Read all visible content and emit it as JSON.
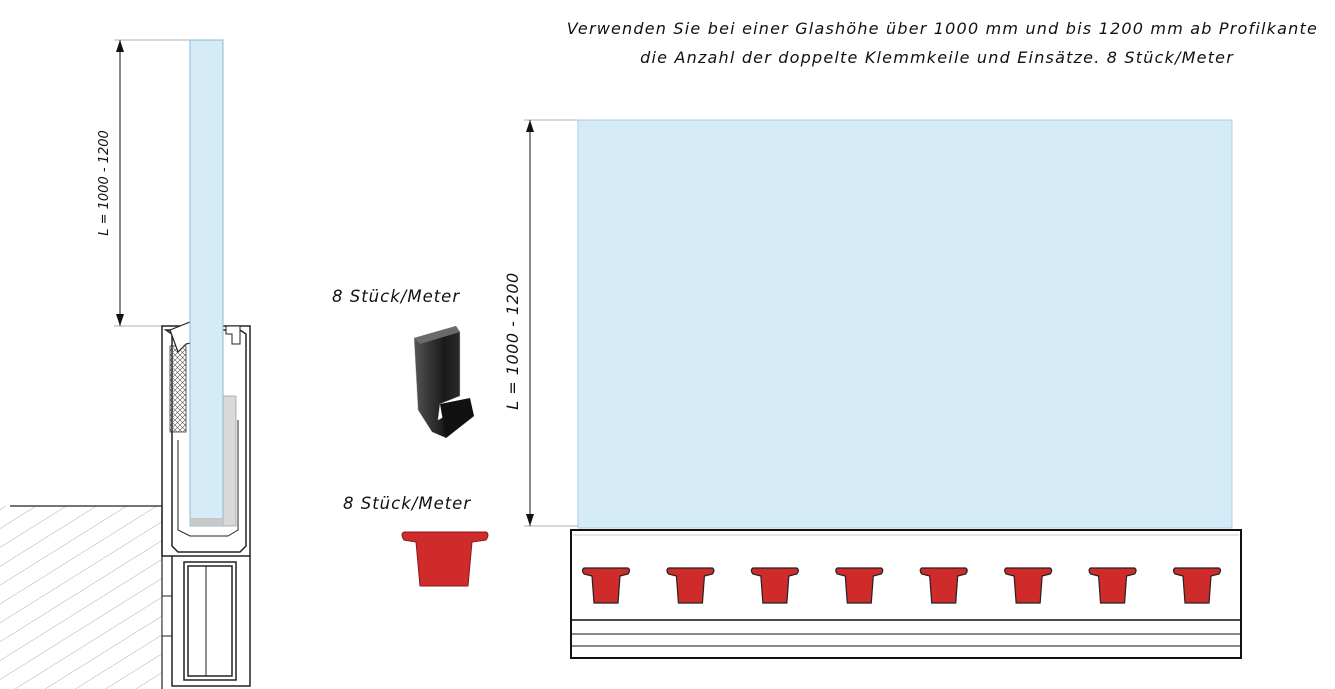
{
  "note": {
    "line1": "Verwenden Sie bei einer Glashöhe über 1000 mm und bis 1200 mm ab Profilkante",
    "line2": "die Anzahl der doppelte Klemmkeile und Einsätze. 8 Stück/Meter"
  },
  "clamp_wedge": {
    "quantity_label": "8 Stück/Meter"
  },
  "insert": {
    "quantity_label": "8 Stück/Meter"
  },
  "dimensions": {
    "section_height_label": "L = 1000 - 1200",
    "front_height_label": "L = 1000 - 1200"
  },
  "colors": {
    "glass": "#d5ebf7",
    "insert_red": "#cf2b2b",
    "wedge_black": "#1e1e1e"
  },
  "insert_count": 8
}
